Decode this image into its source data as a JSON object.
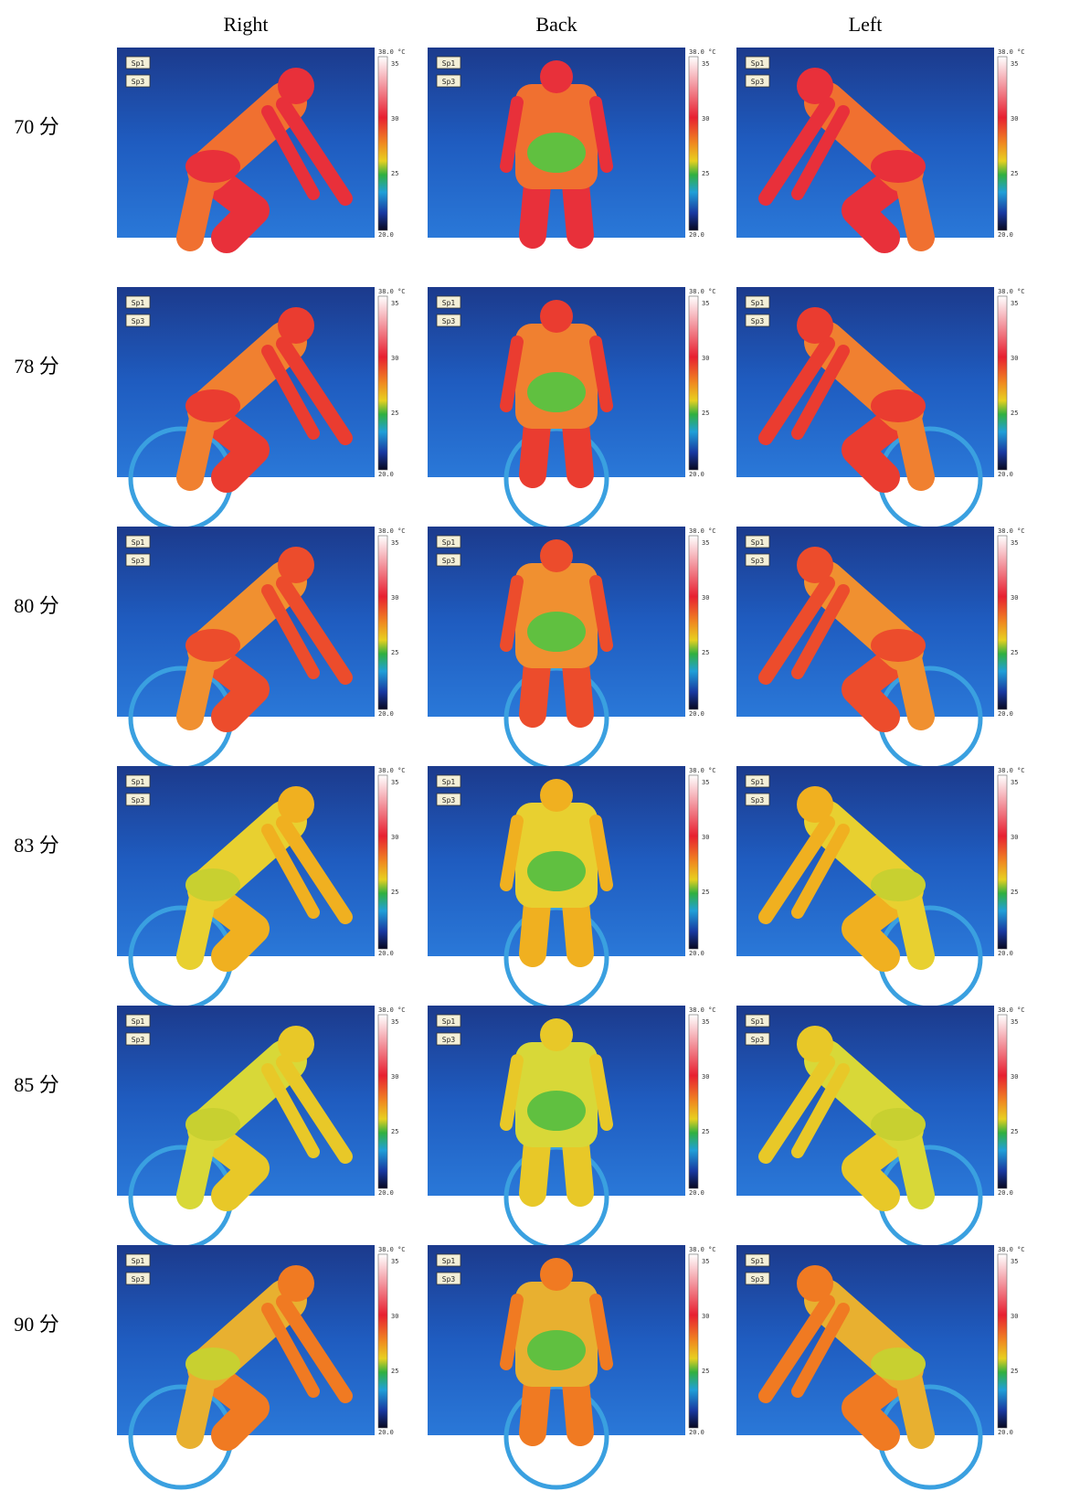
{
  "columns": [
    "Right",
    "Back",
    "Left"
  ],
  "rows": [
    "70 分",
    "78 分",
    "80 分",
    "83 分",
    "85 分",
    "90 分"
  ],
  "colorbar": {
    "max": "38.0 °C",
    "ticks": [
      "35",
      "30",
      "25"
    ],
    "min": "20.0"
  },
  "spots": [
    "Sp1",
    "Sp3"
  ]
}
